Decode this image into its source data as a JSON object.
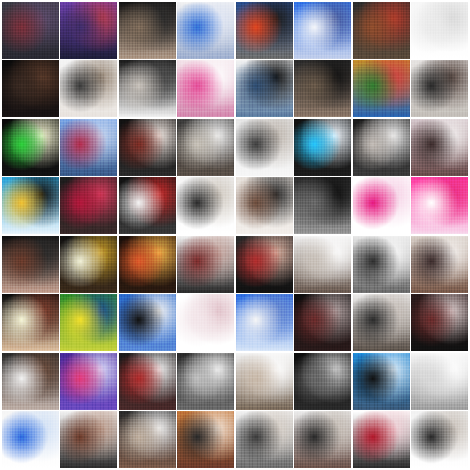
{
  "grid": {
    "rows": 8,
    "cols": 8,
    "tiles": [
      {
        "colors": [
          "#3c3c46",
          "#7a2e38",
          "#5b4a6a",
          "#2a2a33"
        ]
      },
      {
        "colors": [
          "#6a3fa8",
          "#3c2c68",
          "#b23a4a",
          "#1e1e3a"
        ]
      },
      {
        "colors": [
          "#111111",
          "#7f6c5a",
          "#2a2a2a",
          "#b09a88"
        ]
      },
      {
        "colors": [
          "#f2f2f2",
          "#2f6fd8",
          "#e0e6f4",
          "#9fb0d0"
        ]
      },
      {
        "colors": [
          "#254a8a",
          "#e2431d",
          "#1c1c1c",
          "#6e6e6e"
        ]
      },
      {
        "colors": [
          "#2d6fe6",
          "#f5f7fb",
          "#4b5fa0",
          "#c4d0ec"
        ]
      },
      {
        "colors": [
          "#2b2b2b",
          "#8c4b2b",
          "#b33a2a",
          "#5a4a3a"
        ]
      },
      {
        "colors": [
          "#f7f7f7",
          "#eaeaea",
          "#d9d9d9",
          "#ffffff"
        ]
      },
      {
        "colors": [
          "#0b0b0b",
          "#3a2a22",
          "#5a3a2a",
          "#1a1414"
        ]
      },
      {
        "colors": [
          "#f4f4f4",
          "#3a3a3a",
          "#9a8a7a",
          "#e9e4df"
        ]
      },
      {
        "colors": [
          "#1a1a1a",
          "#c8c2bb",
          "#4a4a4a",
          "#f0f0f0"
        ]
      },
      {
        "colors": [
          "#f3e4ea",
          "#e54f9a",
          "#ffffff",
          "#d58ab0"
        ]
      },
      {
        "colors": [
          "#f2f2f2",
          "#2c4a6e",
          "#121212",
          "#5d7ea2"
        ]
      },
      {
        "colors": [
          "#2a2a2a",
          "#6a5a4a",
          "#121212",
          "#8f7a6a"
        ]
      },
      {
        "colors": [
          "#c58b2a",
          "#2f7a2f",
          "#d34040",
          "#2a66b3"
        ]
      },
      {
        "colors": [
          "#e6e3e1",
          "#2a2a2a",
          "#5a4a44",
          "#c5c0ba"
        ]
      },
      {
        "colors": [
          "#0a0a0a",
          "#2bd13a",
          "#f2f2d0",
          "#111111"
        ]
      },
      {
        "colors": [
          "#7aa6e6",
          "#b22a4a",
          "#c3d4f0",
          "#3a5a8a"
        ]
      },
      {
        "colors": [
          "#111111",
          "#7a2a22",
          "#f0e6e0",
          "#2a2a2a"
        ]
      },
      {
        "colors": [
          "#3a3a3a",
          "#c8c2b8",
          "#f0f0f0",
          "#5a5048"
        ]
      },
      {
        "colors": [
          "#e6e6e6",
          "#3a3a3a",
          "#c0b8b0",
          "#f6f6f6"
        ]
      },
      {
        "colors": [
          "#111111",
          "#23c6ff",
          "#f2f8ff",
          "#1c1c1c"
        ]
      },
      {
        "colors": [
          "#1a1a1a",
          "#c2bbb5",
          "#efefef",
          "#3a3a3a"
        ]
      },
      {
        "colors": [
          "#d6c7cc",
          "#3a2a2a",
          "#f2eeee",
          "#6a4b4b"
        ]
      },
      {
        "colors": [
          "#2aa3d8",
          "#f1c232",
          "#111111",
          "#e7f3fb"
        ]
      },
      {
        "colors": [
          "#1c1c1c",
          "#b2173a",
          "#d23a5a",
          "#3a2a2a"
        ]
      },
      {
        "colors": [
          "#111111",
          "#f4f4f4",
          "#c32a2a",
          "#3a3a3a"
        ]
      },
      {
        "colors": [
          "#f6f6f6",
          "#2c2c2c",
          "#cfc8bf",
          "#ffffff"
        ]
      },
      {
        "colors": [
          "#e6e0da",
          "#6a4a3a",
          "#2a2a2a",
          "#f2eeea"
        ]
      },
      {
        "colors": [
          "#2a2a2a",
          "#6a6a6a",
          "#0e0e0e",
          "#9a9a9a"
        ]
      },
      {
        "colors": [
          "#ffffff",
          "#e6177e",
          "#f6d2e6",
          "#ffffff"
        ]
      },
      {
        "colors": [
          "#ff3aa2",
          "#ffffff",
          "#ea2a82",
          "#f8d8ec"
        ]
      },
      {
        "colors": [
          "#0d0d0d",
          "#6a3a2a",
          "#2a2a2a",
          "#c4a090"
        ]
      },
      {
        "colors": [
          "#101010",
          "#f2f2d8",
          "#c59a2a",
          "#3a2a1a"
        ]
      },
      {
        "colors": [
          "#1b0f0a",
          "#e05a2a",
          "#f1b24a",
          "#2a1a10"
        ]
      },
      {
        "colors": [
          "#efefef",
          "#7a2a2a",
          "#c7a7a0",
          "#2a2a2a"
        ]
      },
      {
        "colors": [
          "#2a2a2a",
          "#b02a2a",
          "#d9b0a0",
          "#111111"
        ]
      },
      {
        "colors": [
          "#f2f2f2",
          "#c8c0b8",
          "#ffffff",
          "#6a5a50"
        ]
      },
      {
        "colors": [
          "#e6e6e6",
          "#2a2a2a",
          "#f8f8f8",
          "#6a6a6a"
        ]
      },
      {
        "colors": [
          "#d8cfc8",
          "#3a2a2a",
          "#f3efec",
          "#7a5a4a"
        ]
      },
      {
        "colors": [
          "#0a0a0a",
          "#f6f6d8",
          "#7a3a2a",
          "#e0c0a0"
        ]
      },
      {
        "colors": [
          "#2a8a2a",
          "#f2e02a",
          "#1a4a8a",
          "#c7d23a"
        ]
      },
      {
        "colors": [
          "#2a6acc",
          "#111111",
          "#f2f2f2",
          "#5a8ad8"
        ]
      },
      {
        "colors": [
          "#ffffff",
          "#f3e6ea",
          "#e0c0c8",
          "#ffffff"
        ]
      },
      {
        "colors": [
          "#2a6adf",
          "#f6f6f6",
          "#6a8ad0",
          "#d8e6f8"
        ]
      },
      {
        "colors": [
          "#0d0d0d",
          "#6a2a2a",
          "#b0a0a0",
          "#2a1a1a"
        ]
      },
      {
        "colors": [
          "#ecebea",
          "#2a2a2a",
          "#c8c0ba",
          "#5a5048"
        ]
      },
      {
        "colors": [
          "#2a1a1a",
          "#6a2a2a",
          "#d8c8c8",
          "#111111"
        ]
      },
      {
        "colors": [
          "#2a2a2a",
          "#f2f2f2",
          "#6a4a3a",
          "#c0b0a8"
        ]
      },
      {
        "colors": [
          "#4a2a9a",
          "#e53a7a",
          "#d8d8f8",
          "#6a4ac0"
        ]
      },
      {
        "colors": [
          "#1a1a1a",
          "#b02a2a",
          "#f2f2f2",
          "#4a2a2a"
        ]
      },
      {
        "colors": [
          "#2a2a2a",
          "#c0c0c0",
          "#f2f2f2",
          "#6a6a6a"
        ]
      },
      {
        "colors": [
          "#f2f2f2",
          "#c8b8a8",
          "#ffffff",
          "#7a6a5a"
        ]
      },
      {
        "colors": [
          "#0d0d0d",
          "#6a6a6a",
          "#d0d0d0",
          "#2a2a2a"
        ]
      },
      {
        "colors": [
          "#1f8ad8",
          "#0f0f0f",
          "#d8eaf8",
          "#3a5a7a"
        ]
      },
      {
        "colors": [
          "#f6f6f6",
          "#d8d8d8",
          "#ffffff",
          "#a0a0a0"
        ]
      },
      {
        "colors": [
          "#f6f6f6",
          "#2a6adf",
          "#d0e0f6",
          "#ffffff"
        ]
      },
      {
        "colors": [
          "#f2f2f2",
          "#6a3a2a",
          "#c0a090",
          "#2a2a2a"
        ]
      },
      {
        "colors": [
          "#2a2a2a",
          "#c0b0a0",
          "#f2f2f2",
          "#7a5a4a"
        ]
      },
      {
        "colors": [
          "#c3773a",
          "#2a2a2a",
          "#f2e0d0",
          "#6a3a2a"
        ]
      },
      {
        "colors": [
          "#f2f2f2",
          "#3a3a3a",
          "#d8d0c8",
          "#6a6a6a"
        ]
      },
      {
        "colors": [
          "#ececec",
          "#2a2a2a",
          "#c8c0b8",
          "#6a5048"
        ]
      },
      {
        "colors": [
          "#ffffff",
          "#b0172a",
          "#f2d2d8",
          "#2a2a2a"
        ]
      },
      {
        "colors": [
          "#f2f2f2",
          "#2a2a2a",
          "#c8c0b8",
          "#ffffff"
        ]
      }
    ]
  }
}
